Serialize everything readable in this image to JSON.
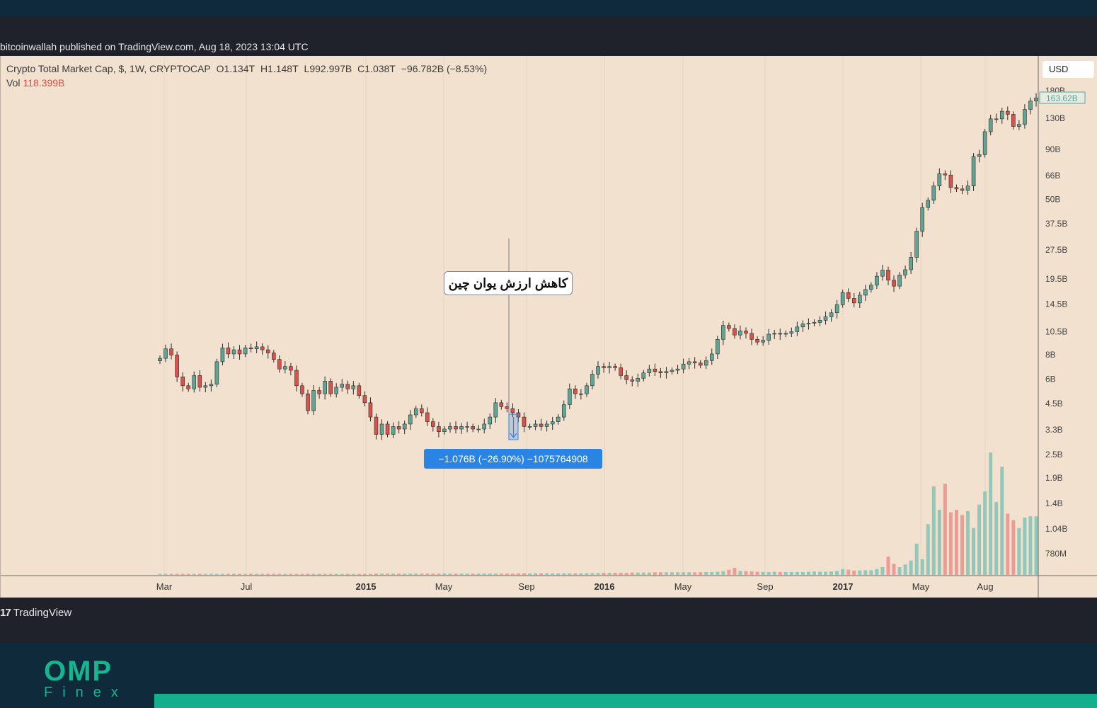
{
  "published": "bitcoinwallah published on TradingView.com, Aug 18, 2023 13:04 UTC",
  "legend": {
    "symbol": "Crypto Total Market Cap, $, 1W, CRYPTOCAP",
    "open": "O1.134T",
    "high": "H1.148T",
    "low": "L992.997B",
    "close": "C1.038T",
    "change": "−96.782B (−8.53%)",
    "vol_label": "Vol",
    "vol_value": "118.399B"
  },
  "currency": "USD",
  "annotation": "کاهش ارزش یوان چین",
  "measure_label": "−1.076B (−26.90%) −1075764908",
  "footer_brand": "TradingView",
  "logo": {
    "omp": "OMP",
    "finex": "Finex"
  },
  "colors": {
    "up": "#5fa596",
    "down": "#d9514b",
    "vol_up": "#8ec9bb",
    "vol_down": "#f09a94",
    "background": "#f2e1cf"
  },
  "chart_data": {
    "type": "candlestick",
    "price_axis": {
      "scale": "log",
      "tick_labels": [
        "180B",
        "130B",
        "90B",
        "66B",
        "50B",
        "37.5B",
        "27.5B",
        "19.5B",
        "14.5B",
        "10.5B",
        "8B",
        "6B",
        "4.5B",
        "3.3B"
      ],
      "last_price_label": "163.62B"
    },
    "volume_axis": {
      "tick_labels": [
        "2.5B",
        "1.9B",
        "1.4B",
        "1.04B",
        "780M"
      ]
    },
    "x_tick_labels": [
      {
        "label": "Mar",
        "bold": false
      },
      {
        "label": "Jul",
        "bold": false
      },
      {
        "label": "2015",
        "bold": true
      },
      {
        "label": "May",
        "bold": false
      },
      {
        "label": "Sep",
        "bold": false
      },
      {
        "label": "2016",
        "bold": true
      },
      {
        "label": "May",
        "bold": false
      },
      {
        "label": "Sep",
        "bold": false
      },
      {
        "label": "2017",
        "bold": true
      },
      {
        "label": "May",
        "bold": false
      },
      {
        "label": "Aug",
        "bold": false
      }
    ],
    "closes": [
      7.6,
      8.5,
      7.9,
      6.1,
      5.5,
      5.3,
      6.2,
      5.4,
      5.5,
      5.6,
      7.3,
      8.6,
      8.0,
      8.4,
      8.0,
      8.6,
      8.5,
      8.7,
      8.4,
      8.1,
      7.5,
      6.7,
      6.9,
      6.6,
      5.5,
      5.0,
      4.1,
      5.2,
      5.0,
      5.8,
      5.0,
      5.4,
      5.6,
      5.3,
      5.5,
      4.9,
      4.5,
      3.8,
      3.1,
      3.5,
      3.1,
      3.4,
      3.3,
      3.5,
      3.9,
      4.2,
      4.0,
      3.6,
      3.4,
      3.2,
      3.3,
      3.4,
      3.3,
      3.4,
      3.4,
      3.3,
      3.3,
      3.5,
      3.8,
      4.5,
      4.3,
      4.2,
      4.0,
      3.8,
      3.4,
      3.4,
      3.5,
      3.4,
      3.5,
      3.6,
      3.8,
      4.4,
      5.3,
      5.0,
      5.0,
      5.5,
      6.3,
      6.9,
      6.8,
      6.9,
      6.8,
      6.2,
      5.9,
      5.8,
      6.0,
      6.4,
      6.7,
      6.5,
      6.4,
      6.5,
      6.6,
      6.7,
      7.1,
      7.3,
      7.2,
      7.0,
      7.4,
      8.0,
      9.5,
      11.2,
      10.8,
      10.0,
      10.5,
      10.2,
      9.5,
      9.2,
      9.4,
      10.1,
      10.2,
      10.1,
      10.2,
      10.4,
      11.0,
      11.4,
      11.5,
      11.6,
      11.9,
      12.4,
      13.0,
      14.3,
      16.5,
      15.4,
      14.6,
      16.0,
      17.1,
      18.0,
      20.0,
      21.5,
      19.1,
      17.8,
      20.3,
      21.6,
      25.0,
      34.0,
      45.0,
      49.0,
      58.0,
      67.0,
      66.0,
      57.0,
      56.0,
      55.0,
      58.0,
      82.0,
      84.0,
      110.0,
      128.0,
      128.0,
      140.0,
      135.0,
      117.0,
      120.0,
      143.0,
      158.0,
      163.6
    ],
    "volume_fractions_of_max": [
      0.008,
      0.008,
      0.008,
      0.008,
      0.008,
      0.008,
      0.008,
      0.008,
      0.008,
      0.008,
      0.008,
      0.008,
      0.008,
      0.008,
      0.008,
      0.008,
      0.008,
      0.008,
      0.008,
      0.008,
      0.008,
      0.008,
      0.008,
      0.008,
      0.008,
      0.008,
      0.008,
      0.008,
      0.008,
      0.008,
      0.008,
      0.008,
      0.008,
      0.008,
      0.008,
      0.008,
      0.008,
      0.008,
      0.01,
      0.01,
      0.01,
      0.01,
      0.01,
      0.01,
      0.01,
      0.01,
      0.01,
      0.01,
      0.01,
      0.01,
      0.01,
      0.01,
      0.01,
      0.01,
      0.01,
      0.01,
      0.01,
      0.01,
      0.01,
      0.01,
      0.01,
      0.01,
      0.01,
      0.012,
      0.012,
      0.012,
      0.012,
      0.012,
      0.012,
      0.012,
      0.012,
      0.012,
      0.012,
      0.012,
      0.012,
      0.012,
      0.014,
      0.014,
      0.016,
      0.016,
      0.016,
      0.016,
      0.016,
      0.018,
      0.018,
      0.018,
      0.018,
      0.02,
      0.02,
      0.02,
      0.02,
      0.02,
      0.02,
      0.02,
      0.02,
      0.02,
      0.022,
      0.022,
      0.024,
      0.028,
      0.04,
      0.054,
      0.03,
      0.028,
      0.026,
      0.024,
      0.022,
      0.022,
      0.024,
      0.022,
      0.022,
      0.022,
      0.022,
      0.022,
      0.024,
      0.026,
      0.024,
      0.024,
      0.026,
      0.03,
      0.045,
      0.04,
      0.034,
      0.034,
      0.036,
      0.036,
      0.045,
      0.06,
      0.14,
      0.085,
      0.06,
      0.08,
      0.11,
      0.24,
      0.12,
      0.39,
      0.68,
      0.5,
      0.7,
      0.48,
      0.5,
      0.46,
      0.49,
      0.36,
      0.54,
      0.64,
      0.94,
      0.56,
      0.83,
      0.47,
      0.42,
      0.36,
      0.44,
      0.45,
      0.45
    ]
  }
}
